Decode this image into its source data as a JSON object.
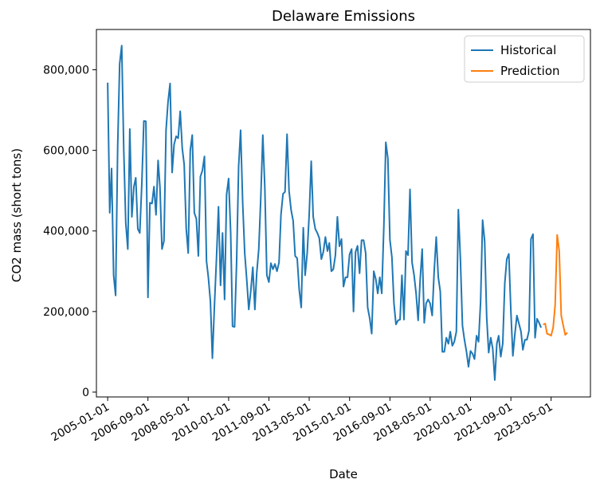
{
  "chart_data": {
    "type": "line",
    "title": "Delaware Emissions",
    "xlabel": "Date",
    "ylabel": "CO2 mass (short tons)",
    "x_axis_type": "date",
    "xlim": [
      "2004-07-15",
      "2024-12-15"
    ],
    "ylim": [
      -12000,
      900000
    ],
    "x_ticks": [
      "2005-01-01",
      "2006-09-01",
      "2008-05-01",
      "2010-01-01",
      "2011-09-01",
      "2013-05-01",
      "2015-01-01",
      "2016-09-01",
      "2018-05-01",
      "2020-01-01",
      "2021-09-01",
      "2023-05-01"
    ],
    "y_ticks": [
      0,
      200000,
      400000,
      600000,
      800000
    ],
    "y_tick_labels": [
      "0",
      "200,000",
      "400,000",
      "600,000",
      "800,000"
    ],
    "grid": false,
    "legend_position": "top-right",
    "series": [
      {
        "name": "Historical",
        "color": "#1f77b4",
        "points": [
          [
            "2005-01-01",
            768000
          ],
          [
            "2005-02-01",
            445000
          ],
          [
            "2005-03-01",
            555000
          ],
          [
            "2005-04-01",
            290000
          ],
          [
            "2005-05-01",
            240000
          ],
          [
            "2005-06-01",
            610000
          ],
          [
            "2005-07-01",
            815000
          ],
          [
            "2005-08-01",
            860000
          ],
          [
            "2005-09-01",
            600000
          ],
          [
            "2005-10-01",
            420000
          ],
          [
            "2005-11-01",
            355000
          ],
          [
            "2005-12-01",
            653000
          ],
          [
            "2006-01-01",
            435000
          ],
          [
            "2006-02-01",
            510000
          ],
          [
            "2006-03-01",
            532000
          ],
          [
            "2006-04-01",
            405000
          ],
          [
            "2006-05-01",
            395000
          ],
          [
            "2006-06-01",
            520000
          ],
          [
            "2006-07-01",
            673000
          ],
          [
            "2006-08-01",
            672000
          ],
          [
            "2006-09-01",
            235000
          ],
          [
            "2006-10-01",
            470000
          ],
          [
            "2006-11-01",
            468000
          ],
          [
            "2006-12-01",
            510000
          ],
          [
            "2007-01-01",
            440000
          ],
          [
            "2007-02-01",
            575000
          ],
          [
            "2007-03-01",
            510000
          ],
          [
            "2007-04-01",
            355000
          ],
          [
            "2007-05-01",
            375000
          ],
          [
            "2007-06-01",
            650000
          ],
          [
            "2007-07-01",
            720000
          ],
          [
            "2007-08-01",
            766000
          ],
          [
            "2007-09-01",
            545000
          ],
          [
            "2007-10-01",
            615000
          ],
          [
            "2007-11-01",
            635000
          ],
          [
            "2007-12-01",
            630000
          ],
          [
            "2008-01-01",
            697000
          ],
          [
            "2008-02-01",
            605000
          ],
          [
            "2008-03-01",
            565000
          ],
          [
            "2008-04-01",
            405000
          ],
          [
            "2008-05-01",
            345000
          ],
          [
            "2008-06-01",
            600000
          ],
          [
            "2008-07-01",
            638000
          ],
          [
            "2008-08-01",
            445000
          ],
          [
            "2008-09-01",
            430000
          ],
          [
            "2008-10-01",
            338000
          ],
          [
            "2008-11-01",
            535000
          ],
          [
            "2008-12-01",
            550000
          ],
          [
            "2009-01-01",
            585000
          ],
          [
            "2009-02-01",
            325000
          ],
          [
            "2009-03-01",
            285000
          ],
          [
            "2009-04-01",
            225000
          ],
          [
            "2009-05-01",
            84000
          ],
          [
            "2009-06-01",
            215000
          ],
          [
            "2009-07-01",
            330000
          ],
          [
            "2009-08-01",
            460000
          ],
          [
            "2009-09-01",
            265000
          ],
          [
            "2009-10-01",
            395000
          ],
          [
            "2009-11-01",
            230000
          ],
          [
            "2009-12-01",
            490000
          ],
          [
            "2010-01-01",
            530000
          ],
          [
            "2010-02-01",
            395000
          ],
          [
            "2010-03-01",
            163000
          ],
          [
            "2010-04-01",
            162000
          ],
          [
            "2010-05-01",
            320000
          ],
          [
            "2010-06-01",
            560000
          ],
          [
            "2010-07-01",
            650000
          ],
          [
            "2010-08-01",
            470000
          ],
          [
            "2010-09-01",
            345000
          ],
          [
            "2010-10-01",
            280000
          ],
          [
            "2010-11-01",
            205000
          ],
          [
            "2010-12-01",
            250000
          ],
          [
            "2011-01-01",
            310000
          ],
          [
            "2011-02-01",
            205000
          ],
          [
            "2011-03-01",
            295000
          ],
          [
            "2011-04-01",
            355000
          ],
          [
            "2011-05-01",
            480000
          ],
          [
            "2011-06-01",
            638000
          ],
          [
            "2011-07-01",
            510000
          ],
          [
            "2011-08-01",
            290000
          ],
          [
            "2011-09-01",
            273000
          ],
          [
            "2011-10-01",
            320000
          ],
          [
            "2011-11-01",
            305000
          ],
          [
            "2011-12-01",
            318000
          ],
          [
            "2012-01-01",
            300000
          ],
          [
            "2012-02-01",
            322000
          ],
          [
            "2012-03-01",
            440000
          ],
          [
            "2012-04-01",
            492000
          ],
          [
            "2012-05-01",
            497000
          ],
          [
            "2012-06-01",
            640000
          ],
          [
            "2012-07-01",
            500000
          ],
          [
            "2012-08-01",
            452000
          ],
          [
            "2012-09-01",
            425000
          ],
          [
            "2012-10-01",
            338000
          ],
          [
            "2012-11-01",
            332000
          ],
          [
            "2012-12-01",
            255000
          ],
          [
            "2013-01-01",
            210000
          ],
          [
            "2013-02-01",
            408000
          ],
          [
            "2013-03-01",
            290000
          ],
          [
            "2013-04-01",
            345000
          ],
          [
            "2013-05-01",
            440000
          ],
          [
            "2013-06-01",
            573000
          ],
          [
            "2013-07-01",
            435000
          ],
          [
            "2013-08-01",
            405000
          ],
          [
            "2013-09-01",
            395000
          ],
          [
            "2013-10-01",
            382000
          ],
          [
            "2013-11-01",
            330000
          ],
          [
            "2013-12-01",
            348000
          ],
          [
            "2014-01-01",
            385000
          ],
          [
            "2014-02-01",
            350000
          ],
          [
            "2014-03-01",
            370000
          ],
          [
            "2014-04-01",
            300000
          ],
          [
            "2014-05-01",
            305000
          ],
          [
            "2014-06-01",
            340000
          ],
          [
            "2014-07-01",
            435000
          ],
          [
            "2014-08-01",
            362000
          ],
          [
            "2014-09-01",
            380000
          ],
          [
            "2014-10-01",
            262000
          ],
          [
            "2014-11-01",
            285000
          ],
          [
            "2014-12-01",
            285000
          ],
          [
            "2015-01-01",
            342000
          ],
          [
            "2015-02-01",
            355000
          ],
          [
            "2015-03-01",
            200000
          ],
          [
            "2015-04-01",
            348000
          ],
          [
            "2015-05-01",
            363000
          ],
          [
            "2015-06-01",
            295000
          ],
          [
            "2015-07-01",
            377000
          ],
          [
            "2015-08-01",
            377000
          ],
          [
            "2015-09-01",
            345000
          ],
          [
            "2015-10-01",
            210000
          ],
          [
            "2015-11-01",
            183000
          ],
          [
            "2015-12-01",
            145000
          ],
          [
            "2016-01-01",
            300000
          ],
          [
            "2016-02-01",
            280000
          ],
          [
            "2016-03-01",
            245000
          ],
          [
            "2016-04-01",
            285000
          ],
          [
            "2016-05-01",
            245000
          ],
          [
            "2016-06-01",
            410000
          ],
          [
            "2016-07-01",
            620000
          ],
          [
            "2016-08-01",
            580000
          ],
          [
            "2016-09-01",
            378000
          ],
          [
            "2016-10-01",
            335000
          ],
          [
            "2016-11-01",
            220000
          ],
          [
            "2016-12-01",
            168000
          ],
          [
            "2017-01-01",
            178000
          ],
          [
            "2017-02-01",
            180000
          ],
          [
            "2017-03-01",
            290000
          ],
          [
            "2017-04-01",
            180000
          ],
          [
            "2017-05-01",
            350000
          ],
          [
            "2017-06-01",
            340000
          ],
          [
            "2017-07-01",
            503000
          ],
          [
            "2017-08-01",
            322000
          ],
          [
            "2017-09-01",
            290000
          ],
          [
            "2017-10-01",
            245000
          ],
          [
            "2017-11-01",
            178000
          ],
          [
            "2017-12-01",
            278000
          ],
          [
            "2018-01-01",
            355000
          ],
          [
            "2018-02-01",
            172000
          ],
          [
            "2018-03-01",
            220000
          ],
          [
            "2018-04-01",
            230000
          ],
          [
            "2018-05-01",
            220000
          ],
          [
            "2018-06-01",
            190000
          ],
          [
            "2018-07-01",
            300000
          ],
          [
            "2018-08-01",
            385000
          ],
          [
            "2018-09-01",
            285000
          ],
          [
            "2018-10-01",
            250000
          ],
          [
            "2018-11-01",
            100000
          ],
          [
            "2018-12-01",
            100000
          ],
          [
            "2019-01-01",
            135000
          ],
          [
            "2019-02-01",
            120000
          ],
          [
            "2019-03-01",
            150000
          ],
          [
            "2019-04-01",
            115000
          ],
          [
            "2019-05-01",
            125000
          ],
          [
            "2019-06-01",
            150000
          ],
          [
            "2019-07-01",
            453000
          ],
          [
            "2019-08-01",
            330000
          ],
          [
            "2019-09-01",
            165000
          ],
          [
            "2019-10-01",
            130000
          ],
          [
            "2019-11-01",
            100000
          ],
          [
            "2019-12-01",
            63000
          ],
          [
            "2020-01-01",
            102000
          ],
          [
            "2020-02-01",
            95000
          ],
          [
            "2020-03-01",
            82000
          ],
          [
            "2020-04-01",
            140000
          ],
          [
            "2020-05-01",
            125000
          ],
          [
            "2020-06-01",
            225000
          ],
          [
            "2020-07-01",
            427000
          ],
          [
            "2020-08-01",
            375000
          ],
          [
            "2020-09-01",
            185000
          ],
          [
            "2020-10-01",
            98000
          ],
          [
            "2020-11-01",
            135000
          ],
          [
            "2020-12-01",
            108000
          ],
          [
            "2021-01-01",
            30000
          ],
          [
            "2021-02-01",
            120000
          ],
          [
            "2021-03-01",
            140000
          ],
          [
            "2021-04-01",
            88000
          ],
          [
            "2021-05-01",
            120000
          ],
          [
            "2021-06-01",
            270000
          ],
          [
            "2021-07-01",
            330000
          ],
          [
            "2021-08-01",
            343000
          ],
          [
            "2021-09-01",
            200000
          ],
          [
            "2021-10-01",
            90000
          ],
          [
            "2021-11-01",
            145000
          ],
          [
            "2021-12-01",
            190000
          ],
          [
            "2022-01-01",
            170000
          ],
          [
            "2022-02-01",
            150000
          ],
          [
            "2022-03-01",
            105000
          ],
          [
            "2022-04-01",
            130000
          ],
          [
            "2022-05-01",
            130000
          ],
          [
            "2022-06-01",
            152000
          ],
          [
            "2022-07-01",
            380000
          ],
          [
            "2022-08-01",
            392000
          ],
          [
            "2022-09-01",
            135000
          ],
          [
            "2022-10-01",
            182000
          ],
          [
            "2022-11-01",
            172000
          ],
          [
            "2022-12-01",
            160000
          ]
        ]
      },
      {
        "name": "Prediction",
        "color": "#ff7f0e",
        "points": [
          [
            "2023-01-01",
            168000
          ],
          [
            "2023-02-01",
            170000
          ],
          [
            "2023-03-01",
            145000
          ],
          [
            "2023-04-01",
            143000
          ],
          [
            "2023-05-01",
            140000
          ],
          [
            "2023-06-01",
            160000
          ],
          [
            "2023-07-01",
            215000
          ],
          [
            "2023-08-01",
            390000
          ],
          [
            "2023-09-01",
            350000
          ],
          [
            "2023-10-01",
            190000
          ],
          [
            "2023-11-01",
            165000
          ],
          [
            "2023-12-01",
            142000
          ],
          [
            "2024-01-01",
            148000
          ]
        ]
      }
    ]
  }
}
